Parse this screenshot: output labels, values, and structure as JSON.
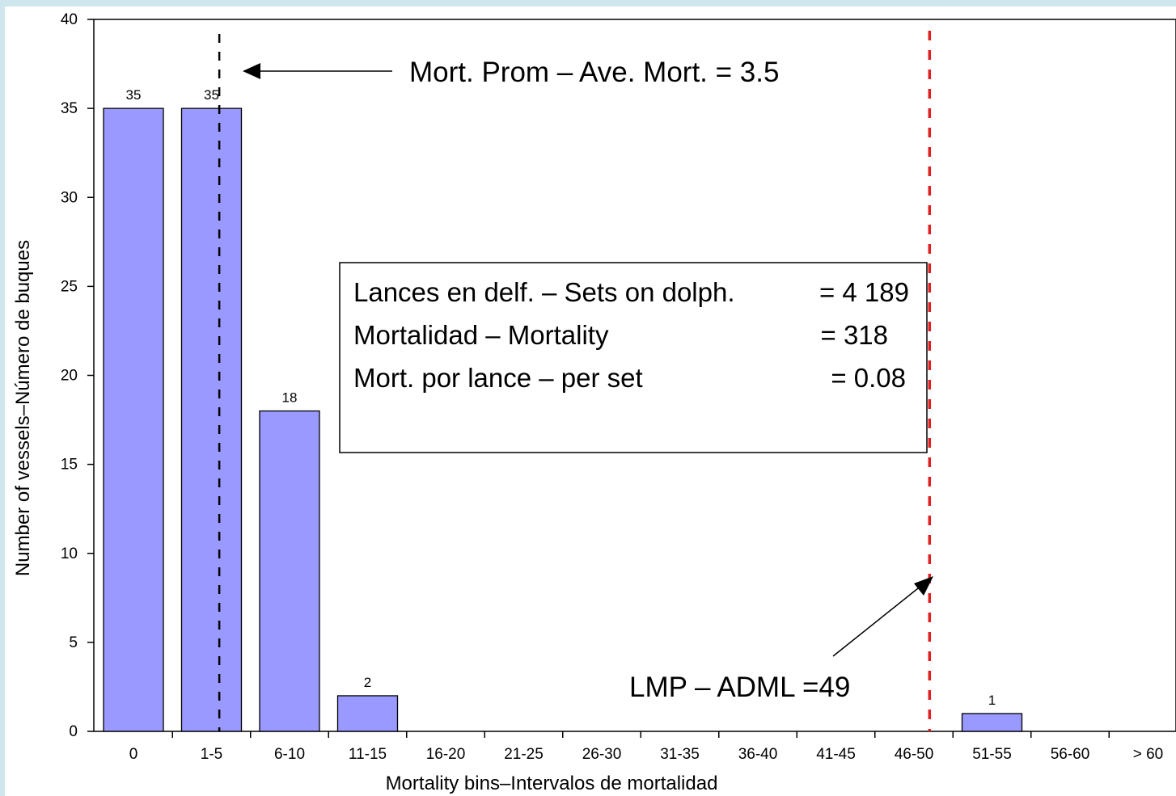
{
  "chart_data": {
    "type": "bar",
    "xlabel": "Mortality bins–Intervalos de mortalidad",
    "ylabel": "Number of vessels–Número de buques",
    "ylim": [
      0,
      40
    ],
    "yticks": [
      0,
      5,
      10,
      15,
      20,
      25,
      30,
      35,
      40
    ],
    "categories": [
      "0",
      "1-5",
      "6-10",
      "11-15",
      "16-20",
      "21-25",
      "26-30",
      "31-35",
      "36-40",
      "41-45",
      "46-50",
      "51-55",
      "56-60",
      "> 60"
    ],
    "values": [
      35,
      35,
      18,
      2,
      0,
      0,
      0,
      0,
      0,
      0,
      0,
      1,
      0,
      0
    ],
    "data_labels": [
      "35",
      "35",
      "18",
      "2",
      "",
      "",
      "",
      "",
      "",
      "",
      "",
      "1",
      "",
      ""
    ],
    "bar_color": "#9999ff",
    "grid": false,
    "reference_lines": [
      {
        "name": "average_mortality",
        "x_value": 3.5,
        "color": "#000000",
        "style": "dashed"
      },
      {
        "name": "dml",
        "x_value": 49,
        "color": "#e02020",
        "style": "dashed"
      }
    ],
    "annotations": {
      "avg_mort_label": "Mort. Prom – Ave. Mort. = 3.5",
      "dml_label": "LMP – ADML =49"
    },
    "stats_box": {
      "line1_label": "Lances en delf. – Sets on dolph.",
      "line1_value": "= 4 189",
      "line2_label": "Mortalidad – Mortality",
      "line2_value": "= 318",
      "line3_label": "Mort. por lance – per set",
      "line3_value": "= 0.08"
    }
  },
  "colors": {
    "frame_accent": "#cfe6ee",
    "axis": "#000000"
  }
}
